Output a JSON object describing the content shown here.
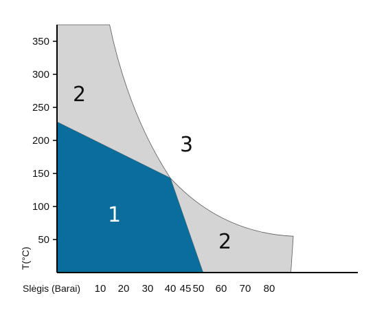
{
  "chart_data": {
    "type": "area",
    "xlabel": "Slėgis (Barai)",
    "ylabel": "T(°C)",
    "x_ticks": [
      10,
      20,
      30,
      40,
      45,
      50,
      60,
      70,
      80
    ],
    "y_ticks": [
      50,
      100,
      150,
      200,
      250,
      300,
      350
    ],
    "ylim": [
      0,
      375
    ],
    "grid": false,
    "colors": {
      "region_1": "#0b6d9c",
      "region_2": "#d4d4d4",
      "region_3": "#ffffff",
      "boundary": "#5a5a5a",
      "axis": "#000000"
    },
    "regions": [
      {
        "label": "1",
        "boundary": [
          [
            0,
            0
          ],
          [
            0,
            228
          ],
          [
            40,
            143
          ],
          [
            52,
            0
          ]
        ]
      },
      {
        "label": "2",
        "boundary": [
          [
            0,
            228
          ],
          [
            0,
            375
          ],
          [
            14,
            375
          ],
          [
            40,
            143
          ]
        ]
      },
      {
        "label": "2",
        "boundary": [
          [
            40,
            143
          ],
          [
            52,
            0
          ],
          [
            90,
            0
          ],
          [
            90,
            55
          ]
        ]
      },
      {
        "label": "3"
      }
    ],
    "region_labels": [
      "1",
      "2",
      "2",
      "3"
    ]
  }
}
